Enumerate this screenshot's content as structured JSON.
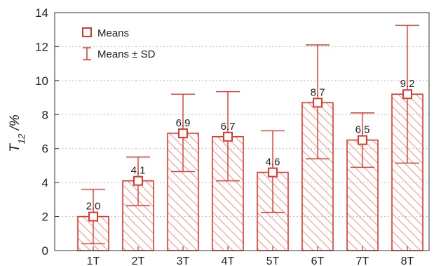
{
  "chart_data": {
    "type": "bar",
    "categories": [
      "1T",
      "2T",
      "3T",
      "4T",
      "5T",
      "6T",
      "7T",
      "8T"
    ],
    "values": [
      2.0,
      4.1,
      6.9,
      6.7,
      4.6,
      8.7,
      6.5,
      9.2
    ],
    "value_labels": [
      "2.0",
      "4.1",
      "6.9",
      "6.7",
      "4.6",
      "8.7",
      "6.5",
      "9.2"
    ],
    "error_low": [
      0.4,
      2.65,
      4.65,
      4.1,
      2.25,
      5.4,
      4.9,
      5.15
    ],
    "error_high": [
      3.6,
      5.5,
      9.2,
      9.35,
      7.05,
      12.1,
      8.1,
      13.25
    ],
    "ylim": [
      0,
      14
    ],
    "yticks": [
      0,
      2,
      4,
      6,
      8,
      10,
      12,
      14
    ],
    "ylabel_main": "T",
    "ylabel_sub": "12",
    "ylabel_suffix": " /%",
    "grid": "horizontal dotted",
    "legend_position": "top-left",
    "legend": {
      "means": "Means",
      "sd": "Means ± SD"
    },
    "colors": {
      "accent": "#e0392b",
      "hatch": "#f19a92",
      "grid": "#bbbbbb",
      "axis": "#333333"
    }
  }
}
